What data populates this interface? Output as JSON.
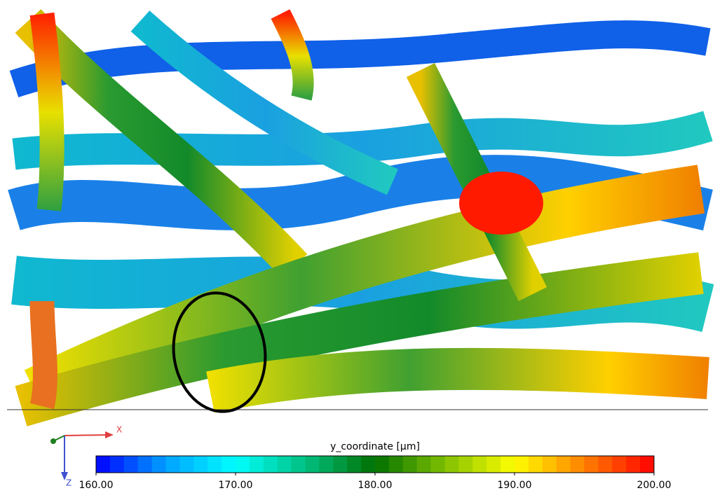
{
  "view": {
    "axes": {
      "x": "X",
      "z": "Z"
    }
  },
  "colorbar": {
    "title": "y_coordinate [μm]",
    "range": [
      160,
      200
    ],
    "ticks": [
      {
        "value": 160,
        "label": "160.00"
      },
      {
        "value": 170,
        "label": "170.00"
      },
      {
        "value": 180,
        "label": "180.00"
      },
      {
        "value": 190,
        "label": "190.00"
      },
      {
        "value": 200,
        "label": "200.00"
      }
    ],
    "colors": [
      "#0000ff",
      "#00a0ff",
      "#00ffff",
      "#00c080",
      "#007000",
      "#80c000",
      "#ffff00",
      "#ff8000",
      "#ff0000"
    ],
    "steps": 40
  }
}
